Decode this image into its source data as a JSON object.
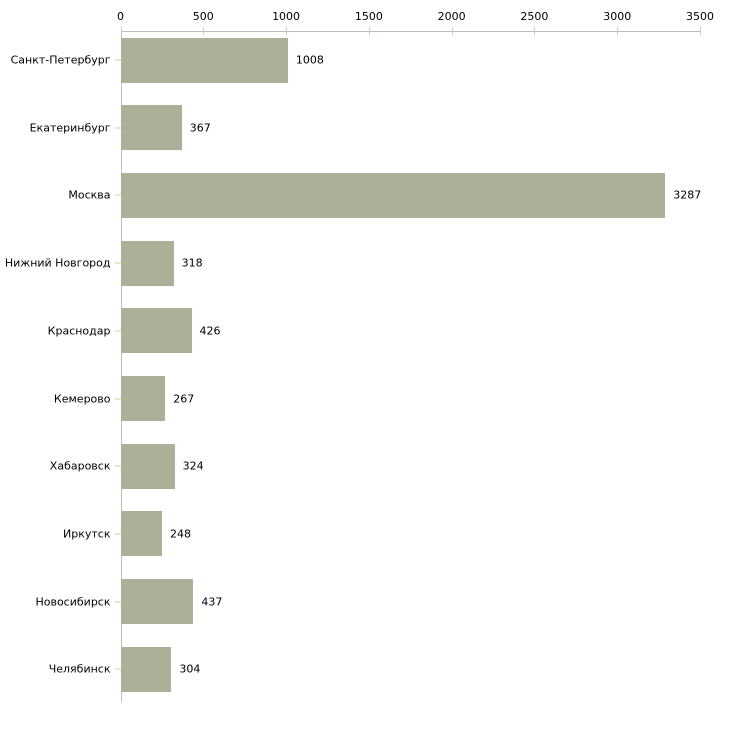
{
  "chart_data": {
    "type": "bar",
    "orientation": "horizontal",
    "title": "",
    "xlabel": "",
    "ylabel": "",
    "categories": [
      "Санкт-Петербург",
      "Екатеринбург",
      "Москва",
      "Нижний Новгород",
      "Краснодар",
      "Кемерово",
      "Хабаровск",
      "Иркутск",
      "Новосибирск",
      "Челябинск"
    ],
    "values": [
      1008,
      367,
      3287,
      318,
      426,
      267,
      324,
      248,
      437,
      304
    ],
    "value_labels": [
      "1008",
      "367",
      "3287",
      "318",
      "426",
      "267",
      "324",
      "248",
      "437",
      "304"
    ],
    "xlim": [
      0,
      3500
    ],
    "x_ticks": [
      "0",
      "500",
      "1000",
      "1500",
      "2000",
      "2500",
      "3000",
      "3500"
    ],
    "x_tick_values": [
      0,
      500,
      1000,
      1500,
      2000,
      2500,
      3000,
      3500
    ],
    "grid": false,
    "legend": false,
    "axis_position": "top",
    "colors": {
      "bar_fill": "#abb098",
      "axis_line": "#bdbdbd",
      "tick_mark": "#cdd0ab",
      "text": "#000000",
      "background": "#ffffff"
    }
  }
}
